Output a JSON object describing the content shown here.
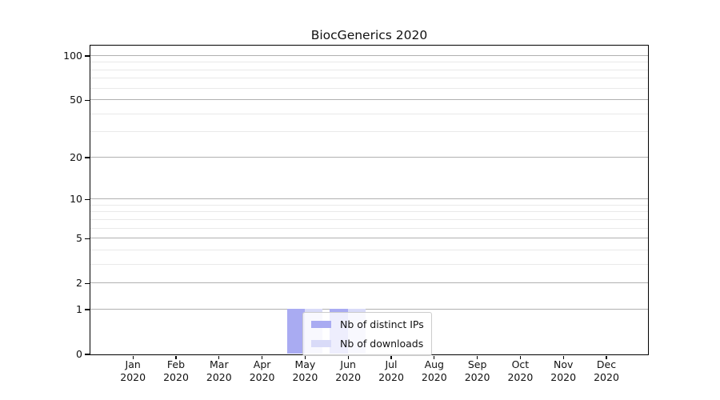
{
  "title": "BiocGenerics 2020",
  "chart_data": {
    "type": "bar",
    "title": "BiocGenerics 2020",
    "months": [
      "Jan",
      "Feb",
      "Mar",
      "Apr",
      "May",
      "Jun",
      "Jul",
      "Aug",
      "Sep",
      "Oct",
      "Nov",
      "Dec"
    ],
    "year": "2020",
    "categories": [
      "Jan 2020",
      "Feb 2020",
      "Mar 2020",
      "Apr 2020",
      "May 2020",
      "Jun 2020",
      "Jul 2020",
      "Aug 2020",
      "Sep 2020",
      "Oct 2020",
      "Nov 2020",
      "Dec 2020"
    ],
    "series": [
      {
        "name": "Nb of distinct IPs",
        "color": "#a9abf2",
        "values": [
          0,
          0,
          0,
          0,
          1,
          1,
          0,
          0,
          0,
          0,
          0,
          0
        ]
      },
      {
        "name": "Nb of downloads",
        "color": "#d9dbf8",
        "values": [
          0,
          0,
          0,
          0,
          1,
          1,
          0,
          0,
          0,
          0,
          0,
          0
        ]
      }
    ],
    "y_axis": {
      "scale": "log10(value+1)",
      "major_ticks": [
        0,
        1,
        2,
        5,
        10,
        20,
        50,
        100
      ],
      "minor_gridlines": [
        3,
        4,
        6,
        7,
        8,
        9,
        30,
        40,
        60,
        70,
        80,
        90
      ],
      "ylim": [
        0,
        110
      ]
    },
    "xlabel": "",
    "ylabel": "",
    "grid": true,
    "legend_position": "inside-bottom-left-of-center",
    "colors": {
      "major_grid": "#b0b0b0",
      "minor_grid": "#e9e9e9",
      "axis": "#000000",
      "legend_border": "#cccccc"
    }
  }
}
